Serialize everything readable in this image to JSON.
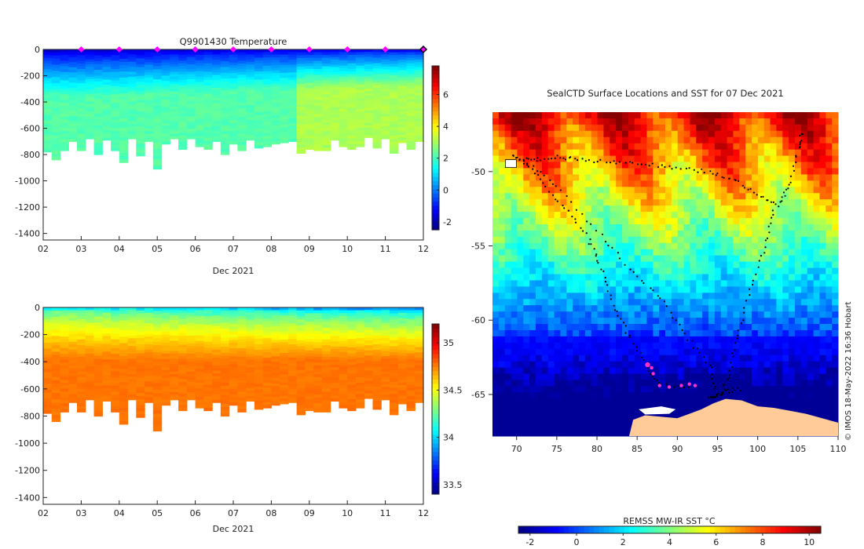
{
  "chart_data": [
    {
      "type": "heatmap",
      "title": "Q9901430  Temperature",
      "xlabel": "Dec 2021",
      "x_ticks": [
        "02",
        "03",
        "04",
        "05",
        "06",
        "07",
        "08",
        "09",
        "10",
        "11",
        "12"
      ],
      "y_ticks": [
        0,
        -200,
        -400,
        -600,
        -800,
        -1000,
        -1200,
        -1400
      ],
      "ylim": [
        -1450,
        0
      ],
      "colorbar": {
        "min": -2.5,
        "max": 7.8,
        "ticks": [
          -2,
          0,
          2,
          4,
          6
        ],
        "colormap": "jet"
      },
      "marker_days": [
        3,
        4,
        5,
        6,
        7,
        8,
        9,
        10,
        11,
        12
      ],
      "profile_depth_m": [
        -780,
        -840,
        -770,
        -700,
        -770,
        -680,
        -800,
        -690,
        -770,
        -860,
        -680,
        -810,
        -700,
        -910,
        -720,
        -680,
        -760,
        -680,
        -740,
        -760,
        -700,
        -800,
        -720,
        -770,
        -690,
        -750,
        -740,
        -720,
        -710,
        -700,
        -790,
        -760,
        -770,
        -770,
        -690,
        -740,
        -760,
        -740,
        -670,
        -750,
        -680,
        -790,
        -710,
        -760,
        -700
      ]
    },
    {
      "type": "heatmap",
      "title": "",
      "xlabel": "Dec 2021",
      "x_ticks": [
        "02",
        "03",
        "04",
        "05",
        "06",
        "07",
        "08",
        "09",
        "10",
        "11",
        "12"
      ],
      "y_ticks": [
        0,
        -200,
        -400,
        -600,
        -800,
        -1000,
        -1200,
        -1400
      ],
      "ylim": [
        -1450,
        0
      ],
      "colorbar": {
        "min": 33.4,
        "max": 35.2,
        "ticks": [
          33.5,
          34,
          34.5,
          35
        ],
        "colormap": "jet"
      },
      "profile_depth_m": [
        -780,
        -840,
        -770,
        -700,
        -770,
        -680,
        -800,
        -690,
        -770,
        -860,
        -680,
        -810,
        -700,
        -910,
        -720,
        -680,
        -760,
        -680,
        -740,
        -760,
        -700,
        -800,
        -720,
        -770,
        -690,
        -750,
        -740,
        -720,
        -710,
        -700,
        -790,
        -760,
        -770,
        -770,
        -690,
        -740,
        -760,
        -740,
        -670,
        -750,
        -680,
        -790,
        -710,
        -760,
        -700
      ]
    },
    {
      "type": "heatmap",
      "title": "SealCTD Surface Locations and SST for 07 Dec 2021",
      "xlim": [
        67,
        110
      ],
      "ylim": [
        -67.8,
        -46
      ],
      "x_ticks": [
        70,
        75,
        80,
        85,
        90,
        95,
        100,
        105,
        110
      ],
      "y_ticks": [
        -50,
        -55,
        -60,
        -65
      ],
      "colorbar": {
        "label": "REMSS MW-IR SST °C",
        "min": -2.5,
        "max": 10.5,
        "ticks": [
          -2,
          0,
          2,
          4,
          6,
          8,
          10
        ],
        "colormap": "jet"
      },
      "land_color": "#ffcc99",
      "track_color": "#000000",
      "recent_color": "#ff33cc",
      "recent_positions": [
        {
          "lon": 86.3,
          "lat": -63.0
        },
        {
          "lon": 86.8,
          "lat": -63.2
        },
        {
          "lon": 87.0,
          "lat": -63.6
        },
        {
          "lon": 87.8,
          "lat": -64.4
        },
        {
          "lon": 89.0,
          "lat": -64.5
        },
        {
          "lon": 90.5,
          "lat": -64.4
        },
        {
          "lon": 91.5,
          "lat": -64.3
        },
        {
          "lon": 92.2,
          "lat": -64.4
        }
      ]
    }
  ],
  "credit": "© IMOS 18-May-2022 16:36 Hobart"
}
